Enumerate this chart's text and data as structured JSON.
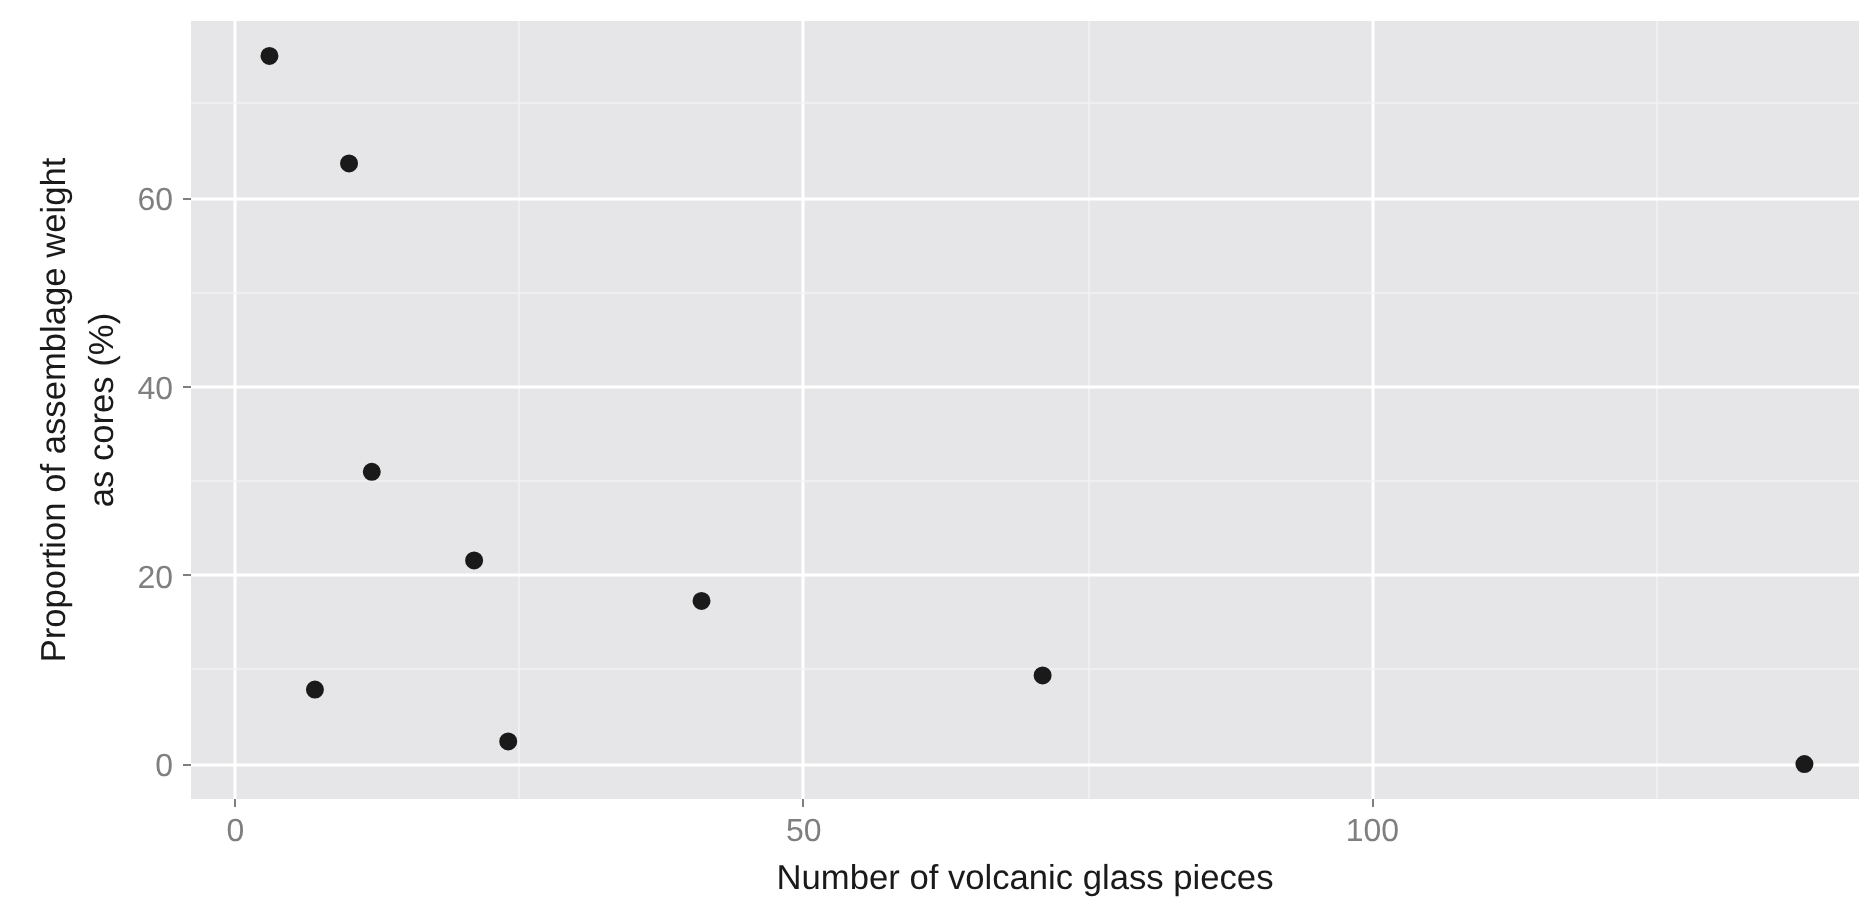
{
  "chart_data": {
    "type": "scatter",
    "xlabel": "Number of volcanic glass pieces",
    "ylabel": "Proportion of assemblage weight\nas cores (%)",
    "x": [
      3,
      10,
      12,
      21,
      7,
      24,
      41,
      71,
      138
    ],
    "series": [
      {
        "color": "#1a1a1a",
        "values": [
          75.1,
          63.7,
          31.0,
          21.6,
          7.9,
          2.4,
          17.3,
          9.4,
          0
        ]
      }
    ],
    "xlim": [
      -3.9,
      142.8
    ],
    "ylim": [
      -3.7,
      78.8
    ],
    "xticks": [
      0,
      50,
      100
    ],
    "yticks": [
      0,
      20,
      40,
      60
    ],
    "grid": true,
    "marker": "circle"
  }
}
